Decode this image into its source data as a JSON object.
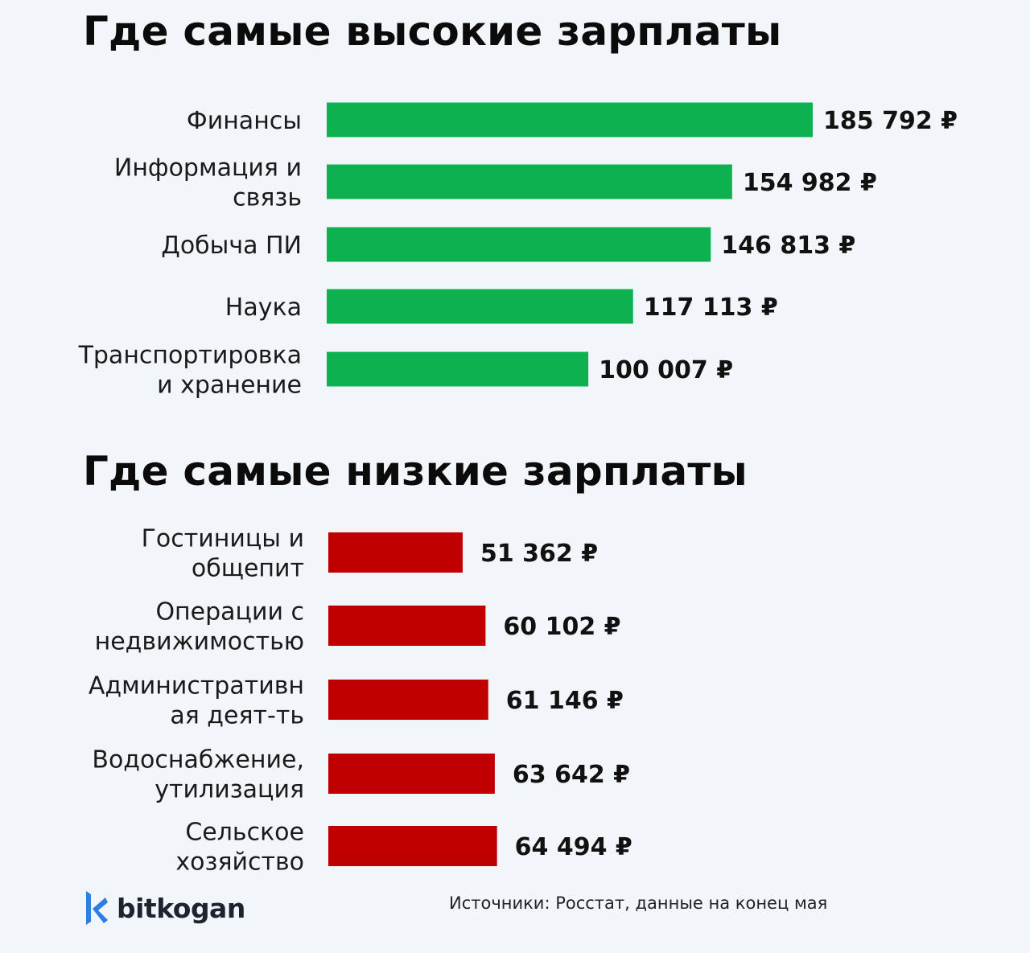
{
  "titles": {
    "top": "Где самые высокие зарплаты",
    "bottom": "Где самые низкие зарплаты"
  },
  "chart_data": [
    {
      "type": "bar",
      "orientation": "horizontal",
      "title": "Где самые высокие зарплаты",
      "categories": [
        [
          "Финансы"
        ],
        [
          "Информация и",
          "связь"
        ],
        [
          "Добыча ПИ"
        ],
        [
          "Наука"
        ],
        [
          "Транспортировка",
          "и хранение"
        ]
      ],
      "values": [
        185792,
        154982,
        146813,
        117113,
        100007
      ],
      "value_labels": [
        "185 792 ₽",
        "154 982 ₽",
        "146 813 ₽",
        "117 113 ₽",
        "100 007 ₽"
      ],
      "color": "#0db14f",
      "grid": false,
      "legend": "none"
    },
    {
      "type": "bar",
      "orientation": "horizontal",
      "title": "Где самые низкие зарплаты",
      "categories": [
        [
          "Гостиницы и",
          "общепит"
        ],
        [
          "Операции с",
          "недвижимостью"
        ],
        [
          "Административн",
          "ая деят-ть"
        ],
        [
          "Водоснабжение,",
          "утилизация"
        ],
        [
          "Сельское",
          "хозяйство"
        ]
      ],
      "values": [
        51362,
        60102,
        61146,
        63642,
        64494
      ],
      "value_labels": [
        "51 362 ₽",
        "60 102 ₽",
        "61 146 ₽",
        "63 642 ₽",
        "64 494 ₽"
      ],
      "color": "#c00000",
      "grid": false,
      "legend": "none"
    }
  ],
  "brand": {
    "name": "bitkogan",
    "icon": "bitkogan-k-logo-icon",
    "color": "#2f7de1"
  },
  "source": "Источники: Росстат, данные на конец мая"
}
